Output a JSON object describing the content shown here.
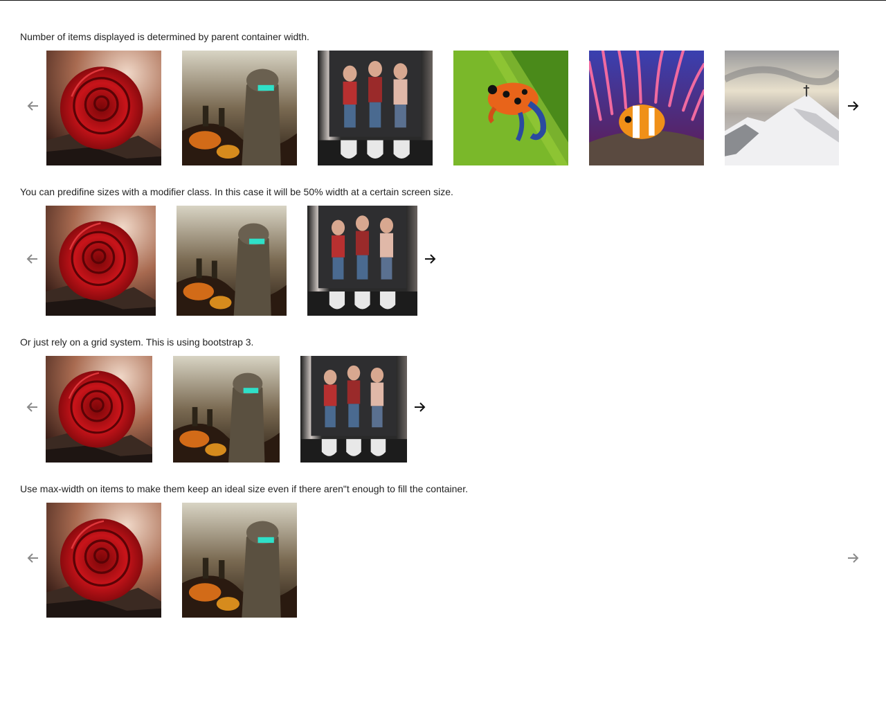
{
  "sections": [
    {
      "caption": "Number of items displayed is determined by parent container width.",
      "prev_disabled": true,
      "next_disabled": false,
      "images": [
        "rose",
        "soldier",
        "urinals",
        "frog",
        "clownfish",
        "mountain"
      ]
    },
    {
      "caption": "You can predifine sizes with a modifier class. In this case it will be 50% width at a certain screen size.",
      "prev_disabled": true,
      "next_disabled": false,
      "images": [
        "rose",
        "soldier",
        "urinals"
      ]
    },
    {
      "caption": "Or just rely on a grid system. This is using bootstrap 3.",
      "prev_disabled": true,
      "next_disabled": false,
      "images": [
        "rose",
        "soldier",
        "urinals"
      ]
    },
    {
      "caption": "Use max-width on items to make them keep an ideal size even if there aren\"t enough to fill the container.",
      "prev_disabled": true,
      "next_disabled": true,
      "images": [
        "rose",
        "soldier"
      ]
    }
  ],
  "icons": {
    "prev": "arrow-left-icon",
    "next": "arrow-right-icon"
  },
  "colors": {
    "arrow_active": "#111111",
    "arrow_disabled": "#8a8a8a",
    "text": "#222222"
  }
}
